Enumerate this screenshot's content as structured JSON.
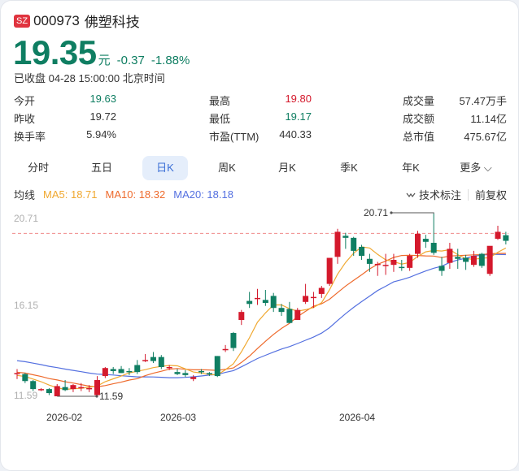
{
  "header": {
    "market_badge": "SZ",
    "code": "000973",
    "name": "佛塑科技",
    "price": "19.35",
    "unit": "元",
    "change": "-0.37",
    "change_pct": "-1.88%",
    "status": "已收盘 04-28 15:00:00 北京时间"
  },
  "stats": [
    {
      "label": "今开",
      "value": "19.63",
      "color": "#0f7e62"
    },
    {
      "label": "最高",
      "value": "19.80",
      "color": "#d4192c"
    },
    {
      "label": "成交量",
      "value": "57.47万手",
      "color": "#333333"
    },
    {
      "label": "昨收",
      "value": "19.72",
      "color": "#333333"
    },
    {
      "label": "最低",
      "value": "19.17",
      "color": "#0f7e62"
    },
    {
      "label": "成交额",
      "value": "11.14亿",
      "color": "#333333"
    },
    {
      "label": "换手率",
      "value": "5.94%",
      "color": "#333333"
    },
    {
      "label": "市盈(TTM)",
      "value": "440.33",
      "color": "#333333"
    },
    {
      "label": "总市值",
      "value": "475.67亿",
      "color": "#333333"
    }
  ],
  "tabs": [
    {
      "label": "分时"
    },
    {
      "label": "五日"
    },
    {
      "label": "日K",
      "active": true
    },
    {
      "label": "周K"
    },
    {
      "label": "月K"
    },
    {
      "label": "季K"
    },
    {
      "label": "年K"
    },
    {
      "label": "更多"
    }
  ],
  "ma": {
    "label": "均线",
    "ma5": "MA5: 18.71",
    "ma10": "MA10: 18.32",
    "ma20": "MA20: 18.18"
  },
  "tools": {
    "annotate": "技术标注",
    "adjust": "前复权"
  },
  "colors": {
    "up": "#d4192c",
    "down": "#0f7e62",
    "ma5": "#f0a830",
    "ma10": "#ee6a2c",
    "ma20": "#5470e0",
    "active_tab": "#3b6fd6"
  },
  "chart_data": {
    "type": "candlestick",
    "title": "000973 佛塑科技 日K",
    "y_ticks": [
      "20.71",
      "16.15",
      "11.59"
    ],
    "ylim": [
      11.59,
      20.71
    ],
    "x_ticks": [
      "2026-02",
      "2026-03",
      "2026-04"
    ],
    "annotations": {
      "max": "20.71",
      "min": "11.59"
    },
    "reference_line": 19.72,
    "legend": [
      "MA5: 18.71",
      "MA10: 18.32",
      "MA20: 18.18"
    ],
    "candles": [
      {
        "o": 12.75,
        "h": 12.95,
        "l": 12.45,
        "c": 12.75
      },
      {
        "o": 12.7,
        "h": 12.75,
        "l": 12.25,
        "c": 12.35
      },
      {
        "o": 12.35,
        "h": 12.4,
        "l": 11.85,
        "c": 11.95
      },
      {
        "o": 11.95,
        "h": 12.0,
        "l": 11.85,
        "c": 11.95
      },
      {
        "o": 11.95,
        "h": 12.0,
        "l": 11.65,
        "c": 11.75
      },
      {
        "o": 11.59,
        "h": 12.2,
        "l": 11.59,
        "c": 12.1
      },
      {
        "o": 12.05,
        "h": 12.4,
        "l": 11.85,
        "c": 11.9
      },
      {
        "o": 11.95,
        "h": 12.2,
        "l": 11.8,
        "c": 12.15
      },
      {
        "o": 12.05,
        "h": 12.25,
        "l": 11.85,
        "c": 12.05
      },
      {
        "o": 12.0,
        "h": 12.15,
        "l": 11.8,
        "c": 12.0
      },
      {
        "o": 11.65,
        "h": 12.6,
        "l": 11.6,
        "c": 12.4
      },
      {
        "o": 12.6,
        "h": 13.05,
        "l": 12.5,
        "c": 13.0
      },
      {
        "o": 12.95,
        "h": 13.05,
        "l": 12.7,
        "c": 12.85
      },
      {
        "o": 12.95,
        "h": 13.1,
        "l": 12.75,
        "c": 12.75
      },
      {
        "o": 12.85,
        "h": 13.0,
        "l": 12.65,
        "c": 12.8
      },
      {
        "o": 13.15,
        "h": 13.4,
        "l": 12.7,
        "c": 12.8
      },
      {
        "o": 13.4,
        "h": 13.7,
        "l": 13.3,
        "c": 13.4
      },
      {
        "o": 13.55,
        "h": 13.8,
        "l": 13.25,
        "c": 13.35
      },
      {
        "o": 13.55,
        "h": 13.65,
        "l": 12.95,
        "c": 13.05
      },
      {
        "o": 13.05,
        "h": 13.15,
        "l": 12.9,
        "c": 13.05
      },
      {
        "o": 12.8,
        "h": 12.95,
        "l": 12.65,
        "c": 12.7
      },
      {
        "o": 12.75,
        "h": 12.9,
        "l": 12.55,
        "c": 12.65
      },
      {
        "o": 12.45,
        "h": 12.65,
        "l": 12.35,
        "c": 12.55
      },
      {
        "o": 12.85,
        "h": 12.95,
        "l": 12.7,
        "c": 12.8
      },
      {
        "o": 12.75,
        "h": 12.8,
        "l": 12.6,
        "c": 12.7
      },
      {
        "o": 13.6,
        "h": 13.6,
        "l": 12.55,
        "c": 12.6
      },
      {
        "o": 13.95,
        "h": 14.15,
        "l": 13.8,
        "c": 13.95
      },
      {
        "o": 14.75,
        "h": 14.8,
        "l": 13.85,
        "c": 14.0
      },
      {
        "o": 15.4,
        "h": 15.9,
        "l": 15.15,
        "c": 15.8
      },
      {
        "o": 16.35,
        "h": 16.8,
        "l": 16.0,
        "c": 16.2
      },
      {
        "o": 16.5,
        "h": 16.95,
        "l": 16.15,
        "c": 16.5
      },
      {
        "o": 16.4,
        "h": 16.9,
        "l": 16.1,
        "c": 16.25
      },
      {
        "o": 16.6,
        "h": 16.75,
        "l": 15.8,
        "c": 16.0
      },
      {
        "o": 16.0,
        "h": 16.2,
        "l": 15.6,
        "c": 15.8
      },
      {
        "o": 15.95,
        "h": 16.3,
        "l": 15.25,
        "c": 15.25
      },
      {
        "o": 15.4,
        "h": 16.0,
        "l": 15.4,
        "c": 15.9
      },
      {
        "o": 16.3,
        "h": 17.2,
        "l": 16.2,
        "c": 16.6
      },
      {
        "o": 16.5,
        "h": 16.8,
        "l": 16.0,
        "c": 16.55
      },
      {
        "o": 16.7,
        "h": 17.1,
        "l": 16.5,
        "c": 17.0
      },
      {
        "o": 17.2,
        "h": 18.3,
        "l": 17.1,
        "c": 18.5
      },
      {
        "o": 18.55,
        "h": 19.95,
        "l": 18.2,
        "c": 19.8
      },
      {
        "o": 19.6,
        "h": 19.75,
        "l": 18.95,
        "c": 19.5
      },
      {
        "o": 19.5,
        "h": 19.55,
        "l": 18.6,
        "c": 18.85
      },
      {
        "o": 19.05,
        "h": 19.15,
        "l": 18.4,
        "c": 18.6
      },
      {
        "o": 18.45,
        "h": 18.7,
        "l": 17.8,
        "c": 18.2
      },
      {
        "o": 18.2,
        "h": 18.3,
        "l": 17.6,
        "c": 18.2
      },
      {
        "o": 18.15,
        "h": 18.7,
        "l": 17.65,
        "c": 18.15
      },
      {
        "o": 18.15,
        "h": 18.7,
        "l": 17.8,
        "c": 18.4
      },
      {
        "o": 18.05,
        "h": 18.4,
        "l": 17.85,
        "c": 18.0
      },
      {
        "o": 18.0,
        "h": 18.7,
        "l": 17.85,
        "c": 18.6
      },
      {
        "o": 18.7,
        "h": 19.85,
        "l": 18.5,
        "c": 19.7
      },
      {
        "o": 19.45,
        "h": 19.65,
        "l": 19.0,
        "c": 19.3
      },
      {
        "o": 19.25,
        "h": 20.71,
        "l": 18.65,
        "c": 18.75
      },
      {
        "o": 18.1,
        "h": 18.55,
        "l": 17.6,
        "c": 17.85
      },
      {
        "o": 18.25,
        "h": 19.25,
        "l": 17.95,
        "c": 18.95
      },
      {
        "o": 18.55,
        "h": 18.95,
        "l": 17.95,
        "c": 18.45
      },
      {
        "o": 18.5,
        "h": 18.65,
        "l": 17.9,
        "c": 18.3
      },
      {
        "o": 18.15,
        "h": 18.85,
        "l": 18.05,
        "c": 18.6
      },
      {
        "o": 18.7,
        "h": 18.75,
        "l": 18.0,
        "c": 18.1
      },
      {
        "o": 17.7,
        "h": 18.85,
        "l": 17.6,
        "c": 19.1
      },
      {
        "o": 19.45,
        "h": 20.1,
        "l": 19.4,
        "c": 19.8
      },
      {
        "o": 19.63,
        "h": 19.8,
        "l": 19.17,
        "c": 19.35
      }
    ]
  }
}
